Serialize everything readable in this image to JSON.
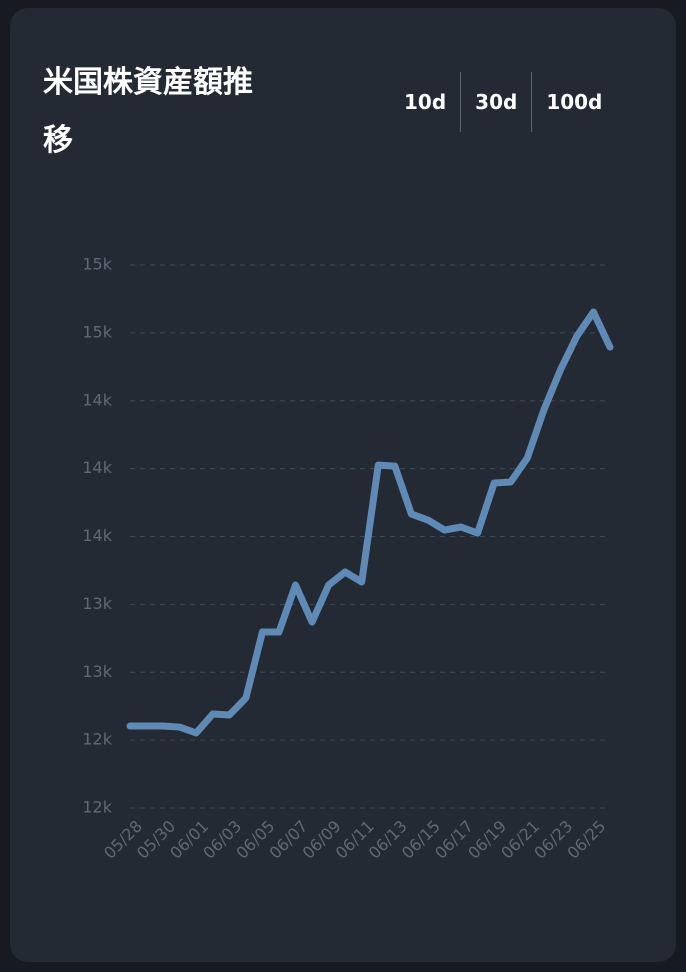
{
  "chart_data": {
    "type": "line",
    "title": "米国株資産額推移",
    "buttons": [
      "10d",
      "30d",
      "100d"
    ],
    "categories": [
      "05/28",
      null,
      "05/30",
      null,
      "06/01",
      null,
      "06/03",
      null,
      "06/05",
      null,
      "06/07",
      null,
      "06/09",
      null,
      "06/11",
      null,
      "06/13",
      null,
      "06/15",
      null,
      "06/17",
      null,
      "06/19",
      null,
      "06/21",
      null,
      "06/23",
      null,
      "06/25",
      null
    ],
    "series": [
      {
        "color": "#5f8ab5",
        "values": [
          12483,
          12483,
          12483,
          12477,
          12442,
          12554,
          12548,
          12648,
          13037,
          13037,
          13314,
          13096,
          13314,
          13391,
          13332,
          14021,
          14015,
          13732,
          13697,
          13638,
          13656,
          13620,
          13915,
          13921,
          14062,
          14345,
          14581,
          14781,
          14923,
          14716
        ]
      }
    ],
    "ylim": [
      12000,
      15200
    ],
    "yticks": [
      {
        "value": 12000,
        "label": "12k"
      },
      {
        "value": 12400,
        "label": "12k"
      },
      {
        "value": 12800,
        "label": "13k"
      },
      {
        "value": 13200,
        "label": "13k"
      },
      {
        "value": 13600,
        "label": "14k"
      },
      {
        "value": 14000,
        "label": "14k"
      },
      {
        "value": 14400,
        "label": "14k"
      },
      {
        "value": 14800,
        "label": "15k"
      },
      {
        "value": 15200,
        "label": "15k"
      }
    ],
    "grid": true
  }
}
